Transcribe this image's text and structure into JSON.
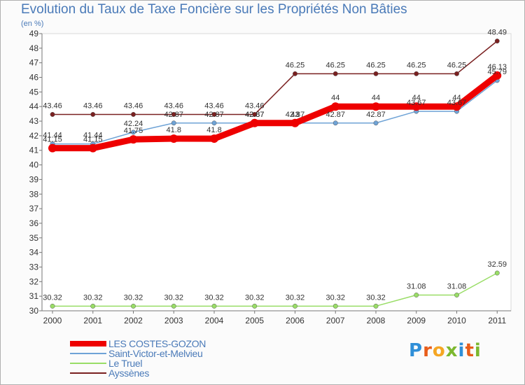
{
  "title": "Evolution du Taux de Taxe Foncière sur les Propriétés Non Bâties",
  "subtitle": "(en %)",
  "logo": {
    "letters": [
      {
        "ch": "P",
        "color": "#2f8fd8"
      },
      {
        "ch": "r",
        "color": "#e85d1a"
      },
      {
        "ch": "o",
        "color": "#f5a623"
      },
      {
        "ch": "x",
        "color": "#7cb82f"
      },
      {
        "ch": "i",
        "color": "#2f8fd8"
      },
      {
        "ch": "t",
        "color": "#e85d1a"
      },
      {
        "ch": "i",
        "color": "#7cb82f"
      }
    ]
  },
  "chart_data": {
    "type": "line",
    "title": "Evolution du Taux de Taxe Foncière sur les Propriétés Non Bâties",
    "ylabel": "(en %)",
    "xlabel": "",
    "ylim": [
      30,
      49
    ],
    "yticks": [
      "30",
      "31",
      "32",
      "33",
      "34",
      "35",
      "36",
      "37",
      "38",
      "39",
      "40",
      "41",
      "42",
      "43",
      "44",
      "45",
      "46",
      "47",
      "48",
      "49"
    ],
    "categories": [
      "2000",
      "2001",
      "2002",
      "2003",
      "2004",
      "2005",
      "2006",
      "2007",
      "2008",
      "2009",
      "2010",
      "2011"
    ],
    "grid": false,
    "legend_position": "bottom-left",
    "series": [
      {
        "name": "LES COSTES-GOZON",
        "color": "#ee0000",
        "values": [
          41.15,
          41.15,
          41.75,
          41.8,
          41.8,
          42.87,
          42.87,
          44,
          44,
          44,
          44,
          46.13
        ],
        "labels": [
          "41.15",
          "41.15",
          "41.75",
          "41.8",
          "41.8",
          "42.87",
          "43",
          "44",
          "44",
          "44",
          "44",
          "46.13"
        ]
      },
      {
        "name": "Saint-Victor-et-Melvieu",
        "color": "#6fa3d6",
        "values": [
          41.44,
          41.44,
          42.24,
          42.87,
          42.87,
          42.87,
          42.87,
          42.87,
          42.87,
          43.67,
          43.67,
          45.79
        ],
        "labels": [
          "41.44",
          "41.44",
          "42.24",
          "42.87",
          "42.87",
          "42.87",
          "42.87",
          "42.87",
          "42.87",
          "43.67",
          "43.67",
          "45.79"
        ]
      },
      {
        "name": "Le Truel",
        "color": "#99dd66",
        "values": [
          30.32,
          30.32,
          30.32,
          30.32,
          30.32,
          30.32,
          30.32,
          30.32,
          30.32,
          31.08,
          31.08,
          32.59
        ],
        "labels": [
          "30.32",
          "30.32",
          "30.32",
          "30.32",
          "30.32",
          "30.32",
          "30.32",
          "30.32",
          "30.32",
          "31.08",
          "31.08",
          "32.59"
        ]
      },
      {
        "name": "Ayssènes",
        "color": "#7a2020",
        "values": [
          43.46,
          43.46,
          43.46,
          43.46,
          43.46,
          43.46,
          46.25,
          46.25,
          46.25,
          46.25,
          46.25,
          48.49
        ],
        "labels": [
          "43.46",
          "43.46",
          "43.46",
          "43.46",
          "43.46",
          "43.46",
          "46.25",
          "46.25",
          "46.25",
          "46.25",
          "46.25",
          "48.49"
        ]
      }
    ]
  }
}
